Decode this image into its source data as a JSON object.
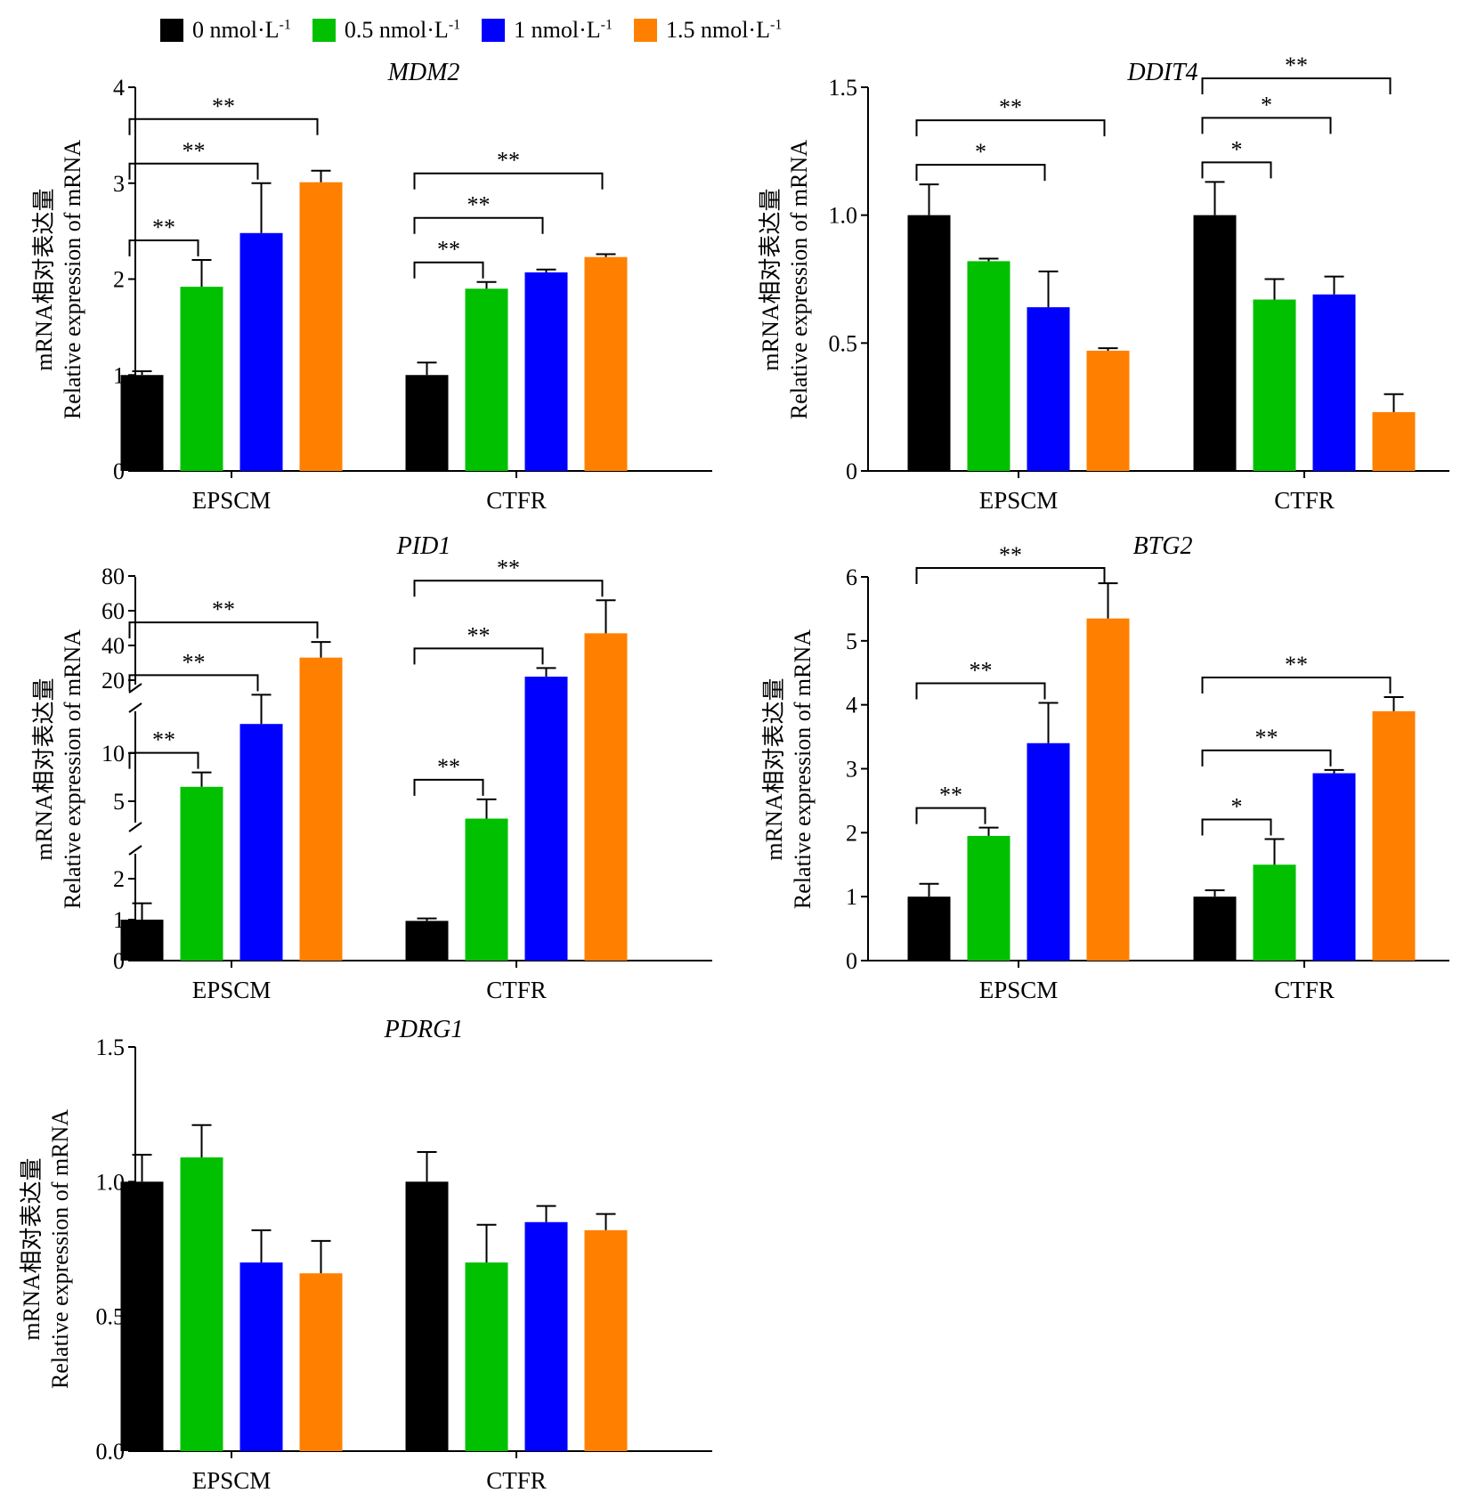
{
  "legend": {
    "items": [
      {
        "label": "0 nmol·L",
        "sup": "-1",
        "color": "#000000"
      },
      {
        "label": "0.5 nmol·L",
        "sup": "-1",
        "color": "#00c000"
      },
      {
        "label": "1 nmol·L",
        "sup": "-1",
        "color": "#0000ff"
      },
      {
        "label": "1.5 nmol·L",
        "sup": "-1",
        "color": "#ff8000"
      }
    ]
  },
  "ylabel_cn": "mRNA相对表达量",
  "ylabel_en": "Relative expression of mRNA",
  "chart_data": [
    {
      "type": "bar",
      "title": "MDM2",
      "categories": [
        "EPSCM",
        "CTFR"
      ],
      "series": [
        {
          "name": "0 nmol·L-1",
          "values": [
            1.0,
            1.0
          ],
          "errors": [
            0.04,
            0.13
          ]
        },
        {
          "name": "0.5 nmol·L-1",
          "values": [
            1.92,
            1.9
          ],
          "errors": [
            0.28,
            0.07
          ]
        },
        {
          "name": "1 nmol·L-1",
          "values": [
            2.48,
            2.07
          ],
          "errors": [
            0.52,
            0.03
          ]
        },
        {
          "name": "1.5 nmol·L-1",
          "values": [
            3.01,
            2.23
          ],
          "errors": [
            0.12,
            0.03
          ]
        }
      ],
      "ylim": [
        0,
        4
      ],
      "yticks": [
        "0",
        "1",
        "2",
        "3",
        "4"
      ],
      "significance": [
        {
          "group": 0,
          "from": 0,
          "to": 1,
          "label": "**"
        },
        {
          "group": 0,
          "from": 0,
          "to": 2,
          "label": "**"
        },
        {
          "group": 0,
          "from": 0,
          "to": 3,
          "label": "**"
        },
        {
          "group": 1,
          "from": 0,
          "to": 1,
          "label": "**"
        },
        {
          "group": 1,
          "from": 0,
          "to": 2,
          "label": "**"
        },
        {
          "group": 1,
          "from": 0,
          "to": 3,
          "label": "**"
        }
      ]
    },
    {
      "type": "bar",
      "title": "DDIT4",
      "categories": [
        "EPSCM",
        "CTFR"
      ],
      "series": [
        {
          "name": "0 nmol·L-1",
          "values": [
            1.0,
            1.0
          ],
          "errors": [
            0.12,
            0.13
          ]
        },
        {
          "name": "0.5 nmol·L-1",
          "values": [
            0.82,
            0.67
          ],
          "errors": [
            0.01,
            0.08
          ]
        },
        {
          "name": "1 nmol·L-1",
          "values": [
            0.64,
            0.69
          ],
          "errors": [
            0.14,
            0.07
          ]
        },
        {
          "name": "1.5 nmol·L-1",
          "values": [
            0.47,
            0.23
          ],
          "errors": [
            0.01,
            0.07
          ]
        }
      ],
      "ylim": [
        0,
        1.5
      ],
      "yticks": [
        "0",
        "0.5",
        "1.0",
        "1.5"
      ],
      "significance": [
        {
          "group": 0,
          "from": 0,
          "to": 2,
          "label": "*"
        },
        {
          "group": 0,
          "from": 0,
          "to": 3,
          "label": "**"
        },
        {
          "group": 1,
          "from": 0,
          "to": 1,
          "label": "*"
        },
        {
          "group": 1,
          "from": 0,
          "to": 2,
          "label": "*"
        },
        {
          "group": 1,
          "from": 0,
          "to": 3,
          "label": "**"
        }
      ]
    },
    {
      "type": "bar",
      "title": "PID1",
      "categories": [
        "EPSCM",
        "CTFR"
      ],
      "broken_axis": true,
      "series": [
        {
          "name": "0 nmol·L-1",
          "values": [
            1.0,
            0.97
          ],
          "errors": [
            0.4,
            0.06
          ]
        },
        {
          "name": "0.5 nmol·L-1",
          "values": [
            6.5,
            4.0
          ],
          "errors": [
            1.5,
            1.2
          ]
        },
        {
          "name": "1 nmol·L-1",
          "values": [
            14,
            22
          ],
          "errors": [
            4,
            5
          ]
        },
        {
          "name": "1.5 nmol·L-1",
          "values": [
            33,
            47
          ],
          "errors": [
            9,
            19
          ]
        }
      ],
      "yticks": [
        "0",
        "1",
        "2",
        "5",
        "10",
        "20",
        "40",
        "60",
        "80"
      ],
      "significance": [
        {
          "group": 0,
          "from": 0,
          "to": 1,
          "label": "**"
        },
        {
          "group": 0,
          "from": 0,
          "to": 2,
          "label": "**"
        },
        {
          "group": 0,
          "from": 0,
          "to": 3,
          "label": "**"
        },
        {
          "group": 1,
          "from": 0,
          "to": 1,
          "label": "**"
        },
        {
          "group": 1,
          "from": 0,
          "to": 2,
          "label": "**"
        },
        {
          "group": 1,
          "from": 0,
          "to": 3,
          "label": "**"
        }
      ]
    },
    {
      "type": "bar",
      "title": "BTG2",
      "categories": [
        "EPSCM",
        "CTFR"
      ],
      "series": [
        {
          "name": "0 nmol·L-1",
          "values": [
            1.0,
            1.0
          ],
          "errors": [
            0.2,
            0.1
          ]
        },
        {
          "name": "0.5 nmol·L-1",
          "values": [
            1.95,
            1.5
          ],
          "errors": [
            0.13,
            0.4
          ]
        },
        {
          "name": "1 nmol·L-1",
          "values": [
            3.4,
            2.93
          ],
          "errors": [
            0.63,
            0.05
          ]
        },
        {
          "name": "1.5 nmol·L-1",
          "values": [
            5.35,
            3.9
          ],
          "errors": [
            0.55,
            0.22
          ]
        }
      ],
      "ylim": [
        0,
        6
      ],
      "yticks": [
        "0",
        "1",
        "2",
        "3",
        "4",
        "5",
        "6"
      ],
      "significance": [
        {
          "group": 0,
          "from": 0,
          "to": 1,
          "label": "**"
        },
        {
          "group": 0,
          "from": 0,
          "to": 2,
          "label": "**"
        },
        {
          "group": 0,
          "from": 0,
          "to": 3,
          "label": "**"
        },
        {
          "group": 1,
          "from": 0,
          "to": 1,
          "label": "*"
        },
        {
          "group": 1,
          "from": 0,
          "to": 2,
          "label": "**"
        },
        {
          "group": 1,
          "from": 0,
          "to": 3,
          "label": "**"
        }
      ]
    },
    {
      "type": "bar",
      "title": "PDRG1",
      "categories": [
        "EPSCM",
        "CTFR"
      ],
      "series": [
        {
          "name": "0 nmol·L-1",
          "values": [
            1.0,
            1.0
          ],
          "errors": [
            0.1,
            0.11
          ]
        },
        {
          "name": "0.5 nmol·L-1",
          "values": [
            1.09,
            0.7
          ],
          "errors": [
            0.12,
            0.14
          ]
        },
        {
          "name": "1 nmol·L-1",
          "values": [
            0.7,
            0.85
          ],
          "errors": [
            0.12,
            0.06
          ]
        },
        {
          "name": "1.5 nmol·L-1",
          "values": [
            0.66,
            0.82
          ],
          "errors": [
            0.12,
            0.06
          ]
        }
      ],
      "ylim": [
        0,
        1.5
      ],
      "yticks": [
        "0.0",
        "0.5",
        "1.0",
        "1.5"
      ],
      "significance": []
    }
  ]
}
